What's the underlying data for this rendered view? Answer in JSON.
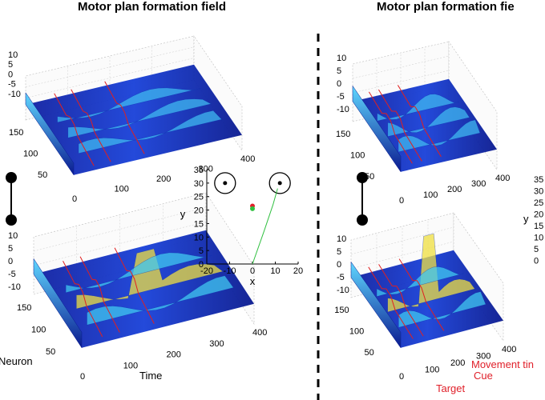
{
  "titles": {
    "left": "Motor plan formation field",
    "right": "Motor plan formation fie"
  },
  "axis_labels": {
    "neuron": "Neuron",
    "time": "Time",
    "x": "x",
    "y": "y"
  },
  "annotations": {
    "movement": "Movement tin",
    "cue": "Cue",
    "target": "Target"
  },
  "chart_data": [
    {
      "type": "surface",
      "panel": "left-top",
      "zticks": [
        "10",
        "5",
        "0",
        "-5",
        "-10"
      ],
      "neuron_ticks": [
        "150",
        "100",
        "50"
      ],
      "time_ticks": [
        "0",
        "100",
        "200",
        "300",
        "400"
      ]
    },
    {
      "type": "surface",
      "panel": "left-bottom",
      "zticks": [
        "10",
        "5",
        "0",
        "-5",
        "-10"
      ],
      "neuron_ticks": [
        "150",
        "100",
        "50"
      ],
      "time_ticks": [
        "0",
        "100",
        "200",
        "300",
        "400"
      ],
      "xlabel": "Time",
      "ylabel": "Neuron"
    },
    {
      "type": "scatter",
      "panel": "middle",
      "xlabel": "x",
      "ylabel": "y",
      "xlim": [
        -20,
        20
      ],
      "ylim": [
        0,
        35
      ],
      "xticks": [
        "-20",
        "-10",
        "0",
        "10",
        "20"
      ],
      "yticks": [
        "35",
        "30",
        "25",
        "20",
        "15",
        "10",
        "5",
        "0"
      ],
      "targets": [
        {
          "x": -12,
          "y": 30
        },
        {
          "x": 12,
          "y": 30
        }
      ],
      "points": [
        {
          "x": 0,
          "y": 21.5,
          "color": "#e0202a"
        },
        {
          "x": 0,
          "y": 20.5,
          "color": "#30c040"
        }
      ],
      "trajectory": [
        [
          0,
          0
        ],
        [
          5,
          12
        ],
        [
          9,
          22
        ],
        [
          11,
          28
        ]
      ]
    },
    {
      "type": "surface",
      "panel": "right-top",
      "zticks": [
        "10",
        "5",
        "0",
        "-5",
        "-10"
      ],
      "neuron_ticks": [
        "150",
        "100",
        "50"
      ],
      "time_ticks": [
        "0",
        "100",
        "200",
        "300",
        "400"
      ]
    },
    {
      "type": "surface",
      "panel": "right-bottom",
      "zticks": [
        "10",
        "5",
        "0",
        "-5",
        "-10"
      ],
      "neuron_ticks": [
        "150",
        "100",
        "50"
      ],
      "time_ticks": [
        "0",
        "100",
        "200",
        "300",
        "400"
      ]
    },
    {
      "type": "scatter",
      "panel": "right-partial",
      "yticks": [
        "35",
        "30",
        "25",
        "20",
        "15",
        "10",
        "5",
        "0"
      ],
      "ylabel": "y"
    }
  ]
}
